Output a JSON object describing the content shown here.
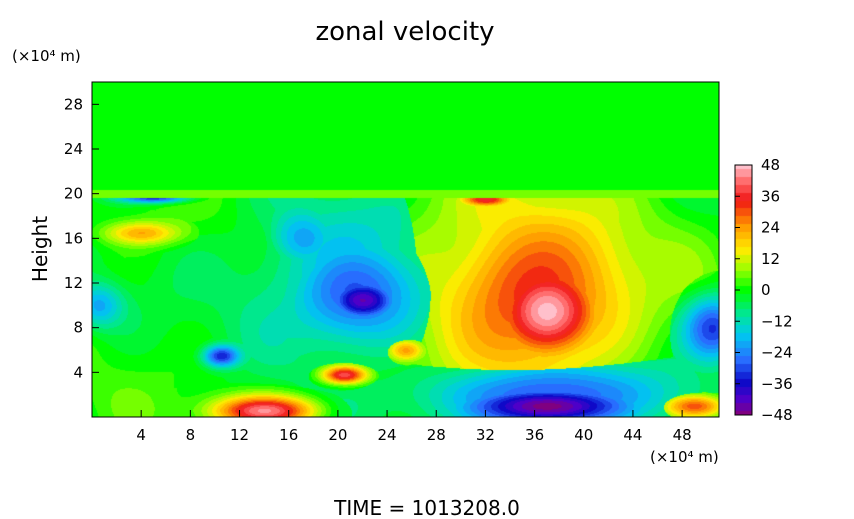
{
  "chart_data": {
    "type": "heatmap",
    "title": "zonal velocity",
    "ylabel": "Height",
    "y_unit": "(×10⁴ m)",
    "x_unit": "(×10⁴ m)",
    "footer": "TIME  =  1013208.0",
    "xlim": [
      0,
      51
    ],
    "ylim": [
      0,
      30
    ],
    "x_ticks": [
      4,
      8,
      12,
      16,
      20,
      24,
      28,
      32,
      36,
      40,
      44,
      48
    ],
    "y_ticks": [
      4,
      8,
      12,
      16,
      20,
      24,
      28
    ],
    "colorbar": {
      "min": -48,
      "max": 48,
      "ticks": [
        48,
        36,
        24,
        12,
        0,
        -12,
        -24,
        -36,
        -48
      ]
    },
    "features": [
      {
        "x": 37,
        "y": 9.5,
        "value": 48,
        "rx": 4.5,
        "ry": 4.5
      },
      {
        "x": 36,
        "y": 11,
        "value": 34,
        "rx": 8,
        "ry": 8
      },
      {
        "x": 35,
        "y": 13,
        "value": 20,
        "rx": 10,
        "ry": 9
      },
      {
        "x": 22,
        "y": 10.5,
        "value": -44,
        "rx": 3,
        "ry": 2
      },
      {
        "x": 21.5,
        "y": 11,
        "value": -30,
        "rx": 6,
        "ry": 5
      },
      {
        "x": 20,
        "y": 13,
        "value": -18,
        "rx": 8,
        "ry": 7
      },
      {
        "x": 37,
        "y": 1,
        "value": -48,
        "rx": 7,
        "ry": 1.8
      },
      {
        "x": 37,
        "y": 2,
        "value": -30,
        "rx": 10,
        "ry": 3
      },
      {
        "x": 50.5,
        "y": 8,
        "value": -32,
        "rx": 2.5,
        "ry": 3
      },
      {
        "x": 14,
        "y": 0.6,
        "value": 44,
        "rx": 4,
        "ry": 1.3
      },
      {
        "x": 20.5,
        "y": 3.8,
        "value": 40,
        "rx": 1.8,
        "ry": 0.8
      },
      {
        "x": 4,
        "y": 16.5,
        "value": 22,
        "rx": 3,
        "ry": 1
      },
      {
        "x": 0.5,
        "y": 10,
        "value": -20,
        "rx": 2,
        "ry": 2
      },
      {
        "x": 5,
        "y": 19.7,
        "value": -34,
        "rx": 3,
        "ry": 0.5
      },
      {
        "x": 10.5,
        "y": 5.5,
        "value": -34,
        "rx": 1.5,
        "ry": 1
      },
      {
        "x": 49,
        "y": 1,
        "value": 30,
        "rx": 2.5,
        "ry": 1
      },
      {
        "x": 25.5,
        "y": 6,
        "value": 24,
        "rx": 1.5,
        "ry": 1
      },
      {
        "x": 17,
        "y": 16,
        "value": -22,
        "rx": 3,
        "ry": 3
      },
      {
        "x": 32,
        "y": 19.5,
        "value": 36,
        "rx": 2,
        "ry": 0.6
      }
    ]
  }
}
